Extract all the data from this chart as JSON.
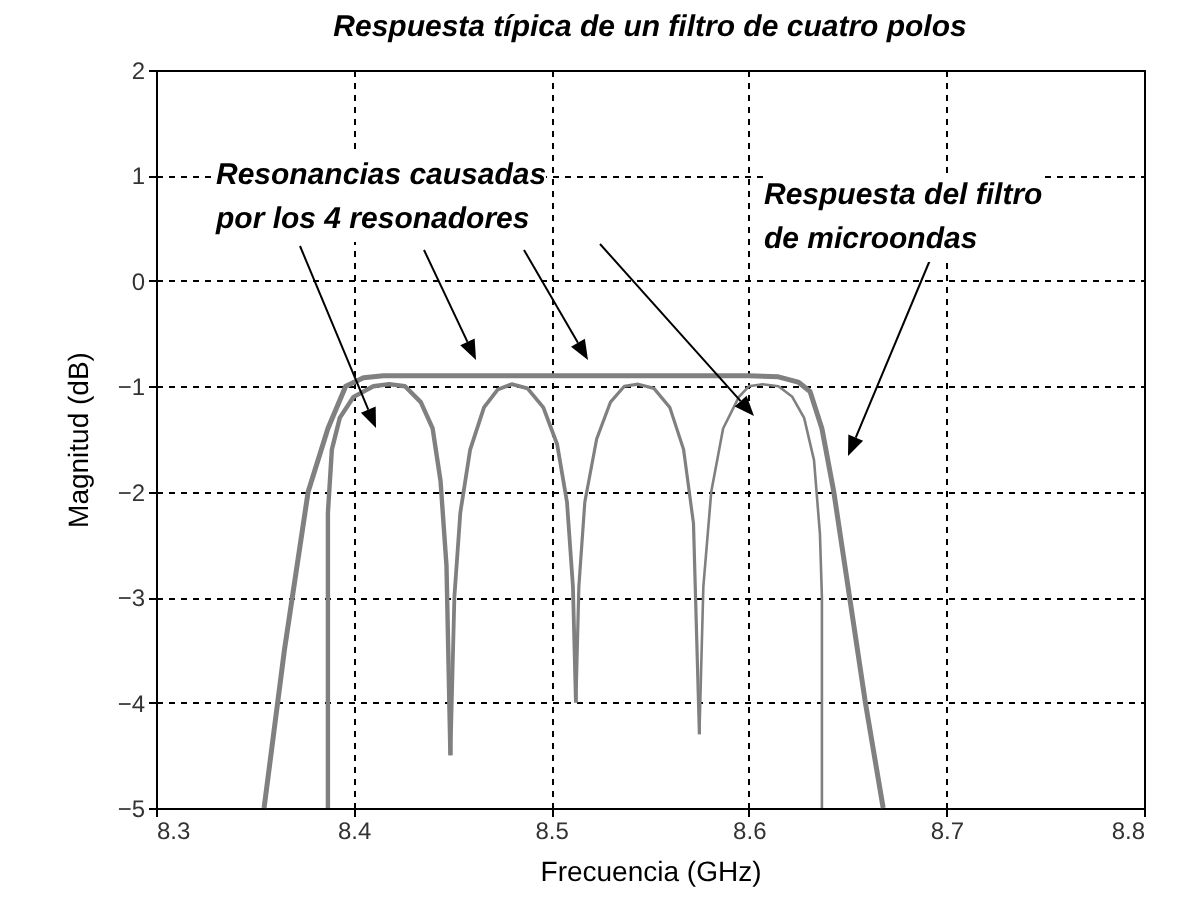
{
  "chart_data": {
    "type": "line",
    "title": "Respuesta típica de un filtro de cuatro polos",
    "xlabel": "Frecuencia (GHz)",
    "ylabel": "Magnitud (dB)",
    "annotations": [
      "Resonancias causadas\npor los 4 resonadores",
      "Respuesta del filtro\nde microondas"
    ],
    "xlim": [
      8.3,
      8.8
    ],
    "xticks": [
      8.3,
      8.4,
      8.5,
      8.6,
      8.7,
      8.8
    ],
    "ylim": [
      -5,
      2
    ],
    "yticks": [
      -5,
      -4,
      -3,
      -2,
      -1,
      0,
      1,
      2
    ],
    "grid": true,
    "legend": false,
    "marker": "none",
    "line_style": "solid",
    "series": [
      {
        "color": "#808080",
        "x": [
          8.3547,
          8.365,
          8.377,
          8.387,
          8.396,
          8.405,
          8.415,
          8.6,
          8.615,
          8.625,
          8.631,
          8.637,
          8.643,
          8.651,
          8.659,
          8.668
        ],
        "values": [
          -5,
          -3.5,
          -2,
          -1.4,
          -1.0,
          -0.92,
          -0.9,
          -0.9,
          -0.91,
          -0.96,
          -1.05,
          -1.4,
          -2,
          -3,
          -4,
          -5
        ]
      },
      {
        "color": "#808080",
        "x": [
          8.387,
          8.387,
          8.389,
          8.393,
          8.4,
          8.41,
          8.418,
          8.426,
          8.434,
          8.44,
          8.444,
          8.447,
          8.449
        ],
        "values": [
          -5,
          -2.2,
          -1.6,
          -1.3,
          -1.1,
          -1.0,
          -0.98,
          -1.0,
          -1.15,
          -1.4,
          -1.9,
          -2.7,
          -4.5
        ]
      },
      {
        "color": "#808080",
        "x": [
          8.449,
          8.451,
          8.454,
          8.459,
          8.466,
          8.473,
          8.48,
          8.488,
          8.496,
          8.503,
          8.508,
          8.511,
          8.5125
        ],
        "values": [
          -4.5,
          -3,
          -2.2,
          -1.6,
          -1.2,
          -1.03,
          -0.98,
          -1.02,
          -1.2,
          -1.55,
          -2.1,
          -2.9,
          -4.0
        ]
      },
      {
        "color": "#808080",
        "x": [
          8.5125,
          8.514,
          8.517,
          8.523,
          8.53,
          8.537,
          8.544,
          8.552,
          8.56,
          8.567,
          8.572,
          8.575
        ],
        "values": [
          -4.0,
          -2.9,
          -2.1,
          -1.5,
          -1.15,
          -1.0,
          -0.98,
          -1.02,
          -1.2,
          -1.6,
          -2.3,
          -4.3
        ]
      },
      {
        "color": "#808080",
        "x": [
          8.575,
          8.577,
          8.581,
          8.587,
          8.595,
          8.6,
          8.607,
          8.615,
          8.622,
          8.628,
          8.633,
          8.636,
          8.637,
          8.637
        ],
        "values": [
          -4.3,
          -2.9,
          -2.0,
          -1.4,
          -1.1,
          -1.0,
          -0.98,
          -1.0,
          -1.1,
          -1.3,
          -1.7,
          -2.4,
          -3,
          -5
        ]
      }
    ]
  }
}
